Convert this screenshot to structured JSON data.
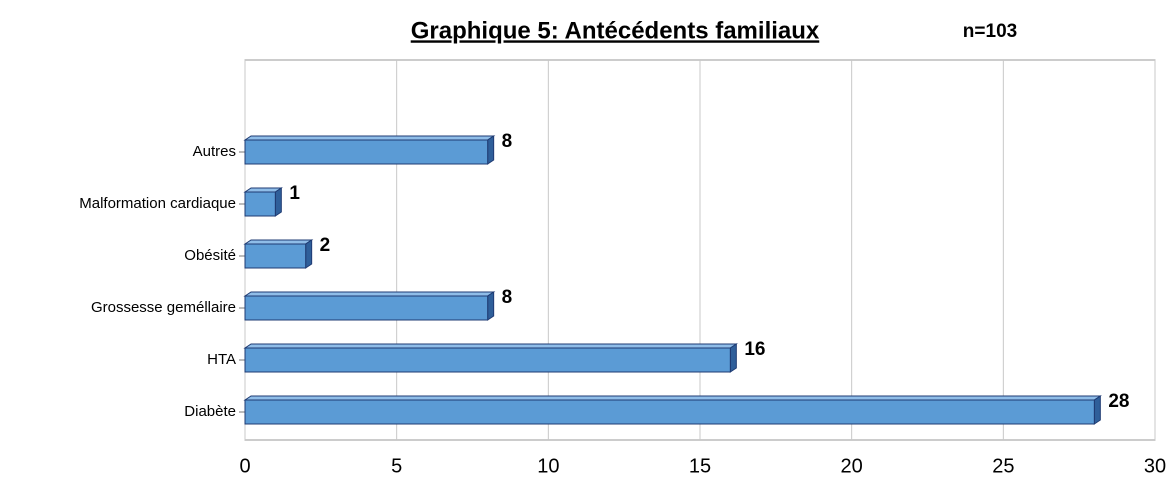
{
  "chart_data": {
    "type": "bar",
    "orientation": "horizontal",
    "title": "Graphique 5: Antécédents familiaux",
    "annotation": "n=103",
    "categories": [
      "Autres",
      "Malformation cardiaque",
      "Obésité",
      "Grossesse geméllaire",
      "HTA",
      "Diabète"
    ],
    "values": [
      8,
      1,
      2,
      8,
      16,
      28
    ],
    "color": "#5b9bd5",
    "xlim": [
      0,
      30
    ],
    "xticks": [
      0,
      5,
      10,
      15,
      20,
      25,
      30
    ],
    "grid": true
  }
}
